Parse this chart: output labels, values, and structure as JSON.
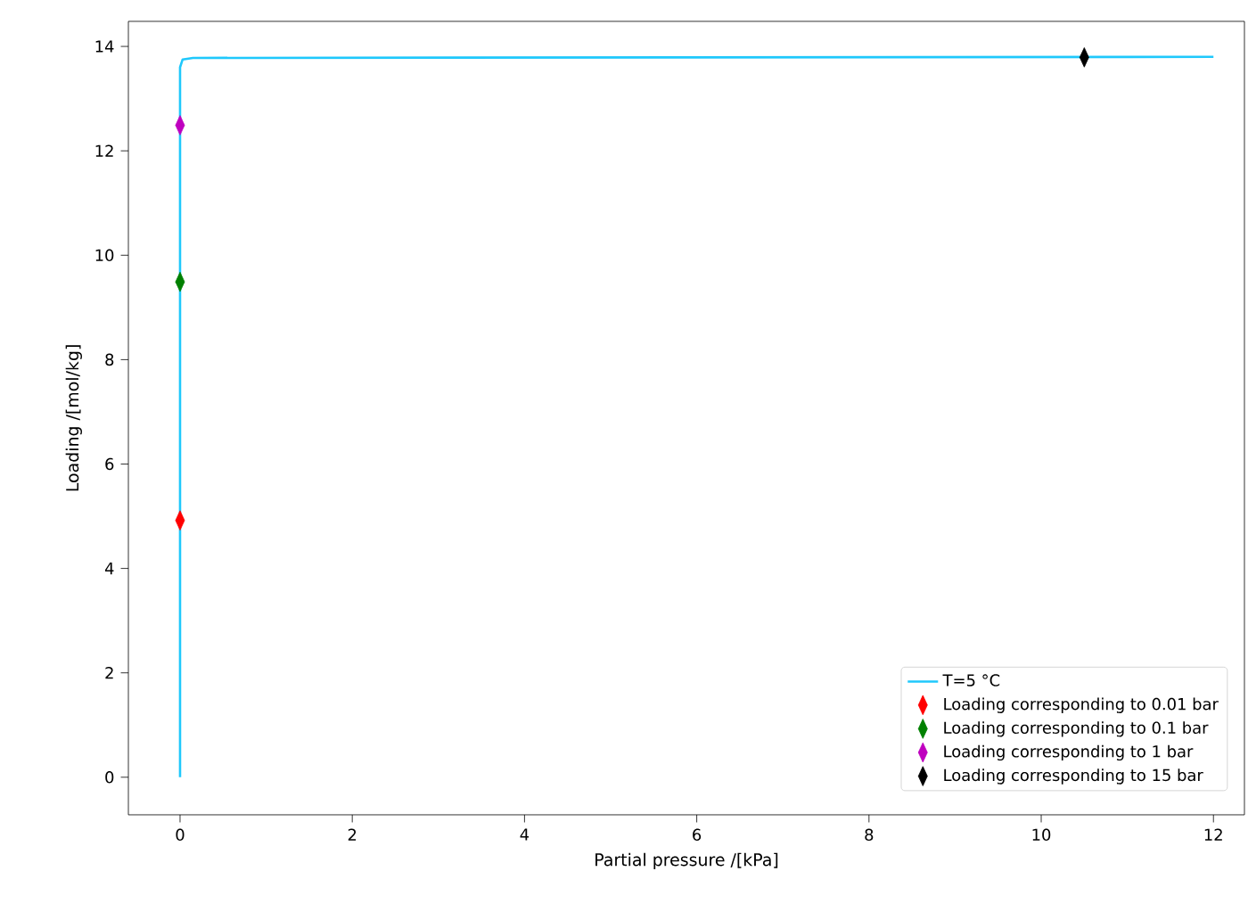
{
  "chart_data": {
    "type": "line",
    "xlabel": "Partial pressure /[kPa]",
    "ylabel": "Loading /[mol/kg]",
    "xlim": [
      -0.6,
      12.36
    ],
    "ylim": [
      -0.72,
      14.48
    ],
    "xticks": [
      0,
      2,
      4,
      6,
      8,
      10,
      12
    ],
    "yticks": [
      0,
      2,
      4,
      6,
      8,
      10,
      12,
      14
    ],
    "legend": "bottom right",
    "grid": false,
    "series": [
      {
        "name": "T=5 °C",
        "color": "#1fc8fc",
        "line_style": "solid",
        "marker": "none",
        "x": [
          0,
          0,
          0.03,
          0.15,
          12
        ],
        "values": [
          0,
          13.6,
          13.75,
          13.78,
          13.8
        ]
      },
      {
        "name": "Loading corresponding to 0.01 bar",
        "type": "scatter",
        "color": "#ff0000",
        "marker": "diamond",
        "x": [
          0
        ],
        "values": [
          4.92
        ]
      },
      {
        "name": "Loading corresponding to 0.1 bar",
        "type": "scatter",
        "color": "#008000",
        "marker": "diamond",
        "x": [
          0
        ],
        "values": [
          9.49
        ]
      },
      {
        "name": "Loading corresponding to 1 bar",
        "type": "scatter",
        "color": "#bf00bf",
        "marker": "diamond",
        "x": [
          0
        ],
        "values": [
          12.49
        ]
      },
      {
        "name": "Loading corresponding to 15 bar",
        "type": "scatter",
        "color": "#000000",
        "marker": "diamond",
        "x": [
          10.5
        ],
        "values": [
          13.79
        ]
      }
    ]
  }
}
